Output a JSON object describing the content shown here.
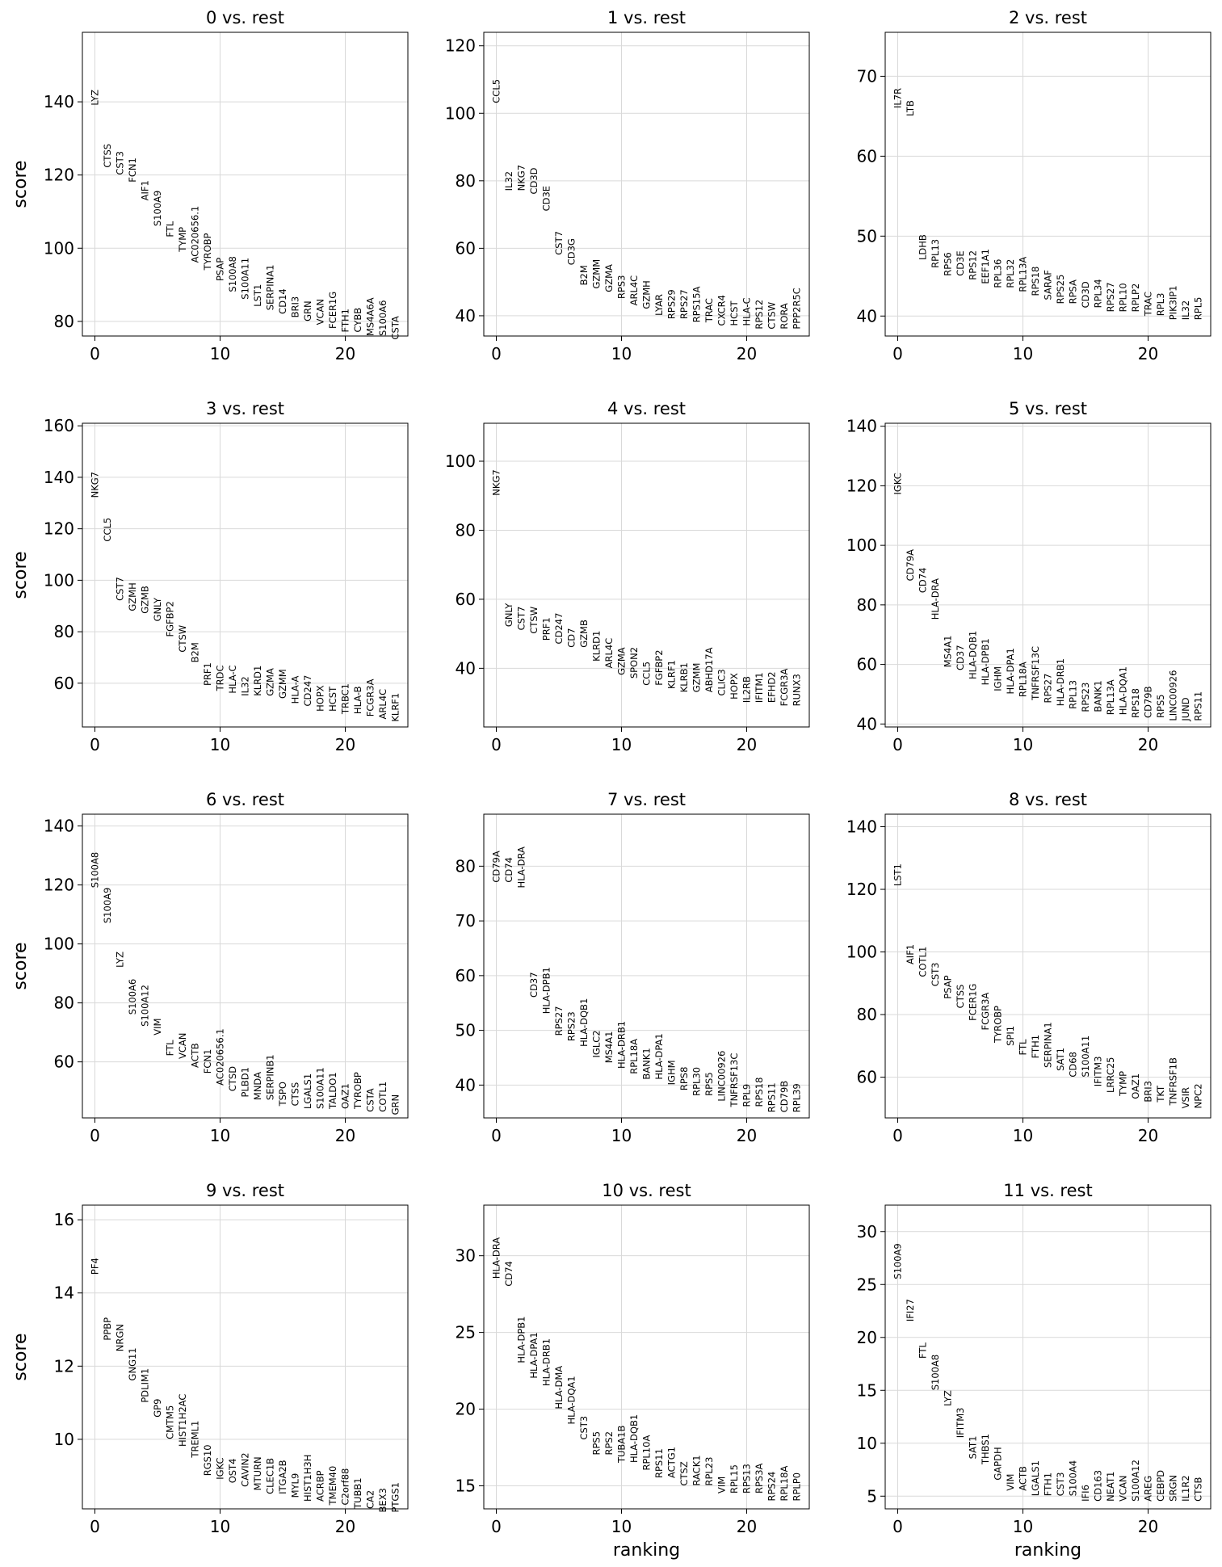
{
  "chart_data": [
    {
      "type": "scatter",
      "title": "0 vs. rest",
      "xlabel": "",
      "ylabel": "score",
      "xlim": [
        -1,
        25
      ],
      "ylim": [
        76,
        159
      ],
      "yticks": [
        80,
        100,
        120,
        140
      ],
      "xticks": [
        0,
        10,
        20
      ],
      "grid": true,
      "genes": [
        "LYZ",
        "CTSS",
        "CST3",
        "FCN1",
        "AIF1",
        "S100A9",
        "FTL",
        "TYMP",
        "AC020656.1",
        "TYROBP",
        "PSAP",
        "S100A8",
        "S100A11",
        "LST1",
        "SERPINA1",
        "CD14",
        "BRI3",
        "GRN",
        "VCAN",
        "FCER1G",
        "FTH1",
        "CYBB",
        "MS4A6A",
        "S100A6",
        "CSTA"
      ],
      "scores": [
        139,
        122,
        120,
        118,
        113,
        106,
        103,
        99,
        96,
        94,
        91,
        88,
        86,
        84,
        83,
        82,
        81,
        80,
        79,
        78,
        77,
        77,
        76,
        76,
        75
      ]
    },
    {
      "type": "scatter",
      "title": "1 vs. rest",
      "xlabel": "",
      "ylabel": "",
      "xlim": [
        -1,
        25
      ],
      "ylim": [
        34,
        124
      ],
      "yticks": [
        40,
        60,
        80,
        100,
        120
      ],
      "xticks": [
        0,
        10,
        20
      ],
      "grid": true,
      "genes": [
        "CCL5",
        "IL32",
        "NKG7",
        "CD3D",
        "CD3E",
        "CST7",
        "CD3G",
        "B2M",
        "GZMM",
        "GZMA",
        "RPS3",
        "ARL4C",
        "GZMH",
        "LYAR",
        "RPS29",
        "RPS27",
        "RPS15A",
        "TRAC",
        "CXCR4",
        "HCST",
        "HLA-C",
        "RPS12",
        "CTSW",
        "RORA",
        "PPP2R5C"
      ],
      "scores": [
        103,
        77,
        77,
        76,
        71,
        58,
        55,
        49,
        48,
        47,
        45,
        43,
        42,
        40,
        39,
        39,
        38,
        38,
        37,
        37,
        37,
        36,
        36,
        36,
        36
      ]
    },
    {
      "type": "scatter",
      "title": "2 vs. rest",
      "xlabel": "",
      "ylabel": "",
      "xlim": [
        -1,
        25
      ],
      "ylim": [
        37.5,
        75.5
      ],
      "yticks": [
        40,
        50,
        60,
        70
      ],
      "xticks": [
        0,
        10,
        20
      ],
      "grid": true,
      "genes": [
        "IL7R",
        "LTB",
        "LDHB",
        "RPL13",
        "RPS6",
        "CD3E",
        "RPS12",
        "EEF1A1",
        "RPL36",
        "RPL32",
        "RPL13A",
        "RPS18",
        "SARAF",
        "RPS25",
        "RPSA",
        "CD3D",
        "RPL34",
        "RPS27",
        "RPL10",
        "RPLP2",
        "TRAC",
        "RPL3",
        "PIK3IP1",
        "IL32",
        "RPL5"
      ],
      "scores": [
        66,
        65,
        47,
        46,
        45,
        45,
        44.5,
        44,
        43.5,
        43.5,
        43,
        42.5,
        42,
        41.5,
        41.5,
        41,
        41,
        40.5,
        40.5,
        40.5,
        40,
        40,
        39.5,
        39.5,
        39.5
      ]
    },
    {
      "type": "scatter",
      "title": "3 vs. rest",
      "xlabel": "",
      "ylabel": "score",
      "xlim": [
        -1,
        25
      ],
      "ylim": [
        43,
        161
      ],
      "yticks": [
        60,
        80,
        100,
        120,
        140,
        160
      ],
      "xticks": [
        0,
        10,
        20
      ],
      "grid": true,
      "genes": [
        "NKG7",
        "CCL5",
        "CST7",
        "GZMH",
        "GZMB",
        "GNLY",
        "FGFBP2",
        "CTSW",
        "B2M",
        "PRF1",
        "TRDC",
        "HLA-C",
        "IL32",
        "KLRD1",
        "GZMA",
        "GZMM",
        "HLA-A",
        "CD247",
        "HOPX",
        "HCST",
        "TRBC1",
        "HLA-B",
        "FCGR3A",
        "ARL4C",
        "KLRF1"
      ],
      "scores": [
        132,
        115,
        92,
        88,
        87,
        84,
        78,
        72,
        68,
        59,
        57,
        56,
        55,
        55,
        55,
        54,
        52,
        51,
        49,
        49,
        48,
        48,
        47,
        46,
        45
      ]
    },
    {
      "type": "scatter",
      "title": "4 vs. rest",
      "xlabel": "",
      "ylabel": "",
      "xlim": [
        -1,
        25
      ],
      "ylim": [
        23,
        111
      ],
      "yticks": [
        40,
        60,
        80,
        100
      ],
      "xticks": [
        0,
        10,
        20
      ],
      "grid": true,
      "genes": [
        "NKG7",
        "GNLY",
        "CST7",
        "CTSW",
        "PRF1",
        "CD247",
        "CD7",
        "GZMB",
        "KLRD1",
        "ARL4C",
        "GZMA",
        "SPON2",
        "CCL5",
        "FGFBP2",
        "KLRF1",
        "KLRB1",
        "GZMM",
        "ABHD17A",
        "CLIC3",
        "HOPX",
        "IL2RB",
        "IFITM1",
        "EFHD2",
        "FCGR3A",
        "RUNX3"
      ],
      "scores": [
        90,
        52,
        51,
        50,
        48,
        47,
        46,
        46,
        42,
        40,
        38,
        37,
        35,
        35,
        34,
        33,
        33,
        33,
        32,
        31,
        30,
        30,
        30,
        29,
        29
      ]
    },
    {
      "type": "scatter",
      "title": "5 vs. rest",
      "xlabel": "",
      "ylabel": "",
      "xlim": [
        -1,
        25
      ],
      "ylim": [
        39,
        141
      ],
      "yticks": [
        40,
        60,
        80,
        100,
        120,
        140
      ],
      "xticks": [
        0,
        10,
        20
      ],
      "grid": true,
      "genes": [
        "IGKC",
        "CD79A",
        "CD74",
        "HLA-DRA",
        "MS4A1",
        "CD37",
        "HLA-DQB1",
        "HLA-DPB1",
        "IGHM",
        "HLA-DPA1",
        "RPL18A",
        "TNFRSF13C",
        "RPS27",
        "HLA-DRB1",
        "RPL13",
        "RPS23",
        "BANK1",
        "RPL13A",
        "HLA-DQA1",
        "RPS18",
        "CD79B",
        "RPS5",
        "LINC00926",
        "JUND",
        "RPS11"
      ],
      "scores": [
        117,
        88,
        84,
        75,
        59,
        58,
        55,
        53,
        51,
        50,
        49,
        48,
        47,
        46,
        45,
        44,
        44,
        43,
        43,
        42,
        42,
        42,
        41,
        41,
        41
      ]
    },
    {
      "type": "scatter",
      "title": "6 vs. rest",
      "xlabel": "",
      "ylabel": "score",
      "xlim": [
        -1,
        25
      ],
      "ylim": [
        41,
        144
      ],
      "yticks": [
        60,
        80,
        100,
        120,
        140
      ],
      "xticks": [
        0,
        10,
        20
      ],
      "grid": true,
      "genes": [
        "S100A8",
        "S100A9",
        "LYZ",
        "S100A6",
        "S100A12",
        "VIM",
        "FTL",
        "VCAN",
        "ACTB",
        "FCN1",
        "AC020656.1",
        "CTSD",
        "PLBD1",
        "MNDA",
        "SERPINB1",
        "TSPO",
        "CTSS",
        "LGALS1",
        "S100A11",
        "TALDO1",
        "OAZ1",
        "TYROBP",
        "CSTA",
        "COTL1",
        "GRN"
      ],
      "scores": [
        119,
        107,
        92,
        76,
        72,
        69,
        62,
        61,
        58,
        56,
        52,
        50,
        48,
        47,
        47,
        45,
        45,
        44,
        44,
        44,
        44,
        44,
        43,
        43,
        42
      ]
    },
    {
      "type": "scatter",
      "title": "7 vs. rest",
      "xlabel": "",
      "ylabel": "",
      "xlim": [
        -1,
        25
      ],
      "ylim": [
        34,
        89.5
      ],
      "yticks": [
        40,
        50,
        60,
        70,
        80
      ],
      "xticks": [
        0,
        10,
        20
      ],
      "grid": true,
      "genes": [
        "CD79A",
        "CD74",
        "HLA-DRA",
        "CD37",
        "HLA-DPB1",
        "RPS27",
        "RPS23",
        "HLA-DQB1",
        "IGLC2",
        "MS4A1",
        "HLA-DRB1",
        "RPL18A",
        "BANK1",
        "HLA-DPA1",
        "IGHM",
        "RPS8",
        "RPL30",
        "RPS5",
        "LINC00926",
        "TNFRSF13C",
        "RPL9",
        "RPS18",
        "RPS11",
        "CD79B",
        "RPL39"
      ],
      "scores": [
        77,
        77,
        76,
        56,
        53,
        49,
        48,
        47,
        45,
        44,
        43,
        42,
        41,
        41,
        40,
        39,
        38,
        38,
        37,
        36,
        36,
        36,
        35,
        35,
        35
      ]
    },
    {
      "type": "scatter",
      "title": "8 vs. rest",
      "xlabel": "",
      "ylabel": "",
      "xlim": [
        -1,
        25
      ],
      "ylim": [
        47,
        144
      ],
      "yticks": [
        60,
        80,
        100,
        120,
        140
      ],
      "xticks": [
        0,
        10,
        20
      ],
      "grid": true,
      "genes": [
        "LST1",
        "AIF1",
        "COTL1",
        "CST3",
        "PSAP",
        "CTSS",
        "FCER1G",
        "FCGR3A",
        "TYROBP",
        "SPI1",
        "FTL",
        "FTH1",
        "SERPINA1",
        "SAT1",
        "CD68",
        "S100A11",
        "IFITM3",
        "LRRC25",
        "TYMP",
        "OAZ1",
        "BRI3",
        "TKT",
        "TNFRSF1B",
        "VSIR",
        "NPC2"
      ],
      "scores": [
        121,
        96,
        92,
        89,
        85,
        82,
        78,
        75,
        71,
        70,
        67,
        66,
        63,
        62,
        60,
        60,
        57,
        55,
        54,
        53,
        52,
        52,
        51,
        50,
        50
      ]
    },
    {
      "type": "scatter",
      "title": "9 vs. rest",
      "xlabel": "",
      "ylabel": "score",
      "xlabel_note": "",
      "xlim": [
        -1,
        25
      ],
      "ylim": [
        8.1,
        16.4
      ],
      "yticks": [
        10,
        12,
        14,
        16
      ],
      "xticks": [
        0,
        10,
        20
      ],
      "grid": true,
      "genes": [
        "PF4",
        "PPBP",
        "NRGN",
        "GNG11",
        "PDLIM1",
        "GP9",
        "CMTM5",
        "HIST1H2AC",
        "TREML1",
        "RGS10",
        "IGKC",
        "OST4",
        "CAVIN2",
        "MTURN",
        "CLEC1B",
        "ITGA2B",
        "MYL9",
        "HIST1H3H",
        "ACRBP",
        "TMEM40",
        "C2orf88",
        "TUBB1",
        "CA2",
        "BEX3",
        "PTGS1"
      ],
      "scores": [
        14.5,
        12.7,
        12.4,
        11.6,
        11.0,
        10.6,
        10.0,
        9.8,
        9.5,
        9.0,
        8.9,
        8.8,
        8.7,
        8.6,
        8.5,
        8.5,
        8.4,
        8.3,
        8.3,
        8.2,
        8.2,
        8.1,
        8.1,
        8.0,
        8.0
      ]
    },
    {
      "type": "scatter",
      "title": "10 vs. rest",
      "xlabel": "ranking",
      "ylabel": "",
      "xlim": [
        -1,
        25
      ],
      "ylim": [
        13.5,
        33.3
      ],
      "yticks": [
        15,
        20,
        25,
        30
      ],
      "xticks": [
        0,
        10,
        20
      ],
      "grid": true,
      "genes": [
        "HLA-DRA",
        "CD74",
        "HLA-DPB1",
        "HLA-DPA1",
        "HLA-DRB1",
        "HLA-DMA",
        "HLA-DQA1",
        "CST3",
        "RPS5",
        "RPS2",
        "TUBA1B",
        "HLA-DQB1",
        "RPL10A",
        "RPS11",
        "ACTG1",
        "CTSZ",
        "RACK1",
        "RPL23",
        "VIM",
        "RPL15",
        "RPS13",
        "RPS3A",
        "RPS24",
        "RPL18A",
        "RPLP0"
      ],
      "scores": [
        28.5,
        28,
        23,
        22,
        21.5,
        20,
        19,
        18,
        17,
        17,
        16.5,
        16.5,
        16,
        15.5,
        15.5,
        15,
        15,
        15,
        14.5,
        14.5,
        14.5,
        14.5,
        14,
        14,
        14
      ]
    },
    {
      "type": "scatter",
      "title": "11 vs. rest",
      "xlabel": "ranking",
      "ylabel": "",
      "xlim": [
        -1,
        25
      ],
      "ylim": [
        3.8,
        32.5
      ],
      "yticks": [
        5,
        10,
        15,
        20,
        25,
        30
      ],
      "xticks": [
        0,
        10,
        20
      ],
      "grid": true,
      "genes": [
        "S100A9",
        "IFI27",
        "FTL",
        "S100A8",
        "LYZ",
        "IFITM3",
        "SAT1",
        "THBS1",
        "GAPDH",
        "VIM",
        "ACTB",
        "LGALS1",
        "FTH1",
        "CST3",
        "S100A4",
        "IFI6",
        "CD163",
        "NEAT1",
        "VCAN",
        "S100A12",
        "AREG",
        "CEBPD",
        "SRGN",
        "IL1R2",
        "CTSB"
      ],
      "scores": [
        25.5,
        21.5,
        18,
        15,
        13.5,
        10.5,
        8.5,
        8,
        6.5,
        5.5,
        5.5,
        5,
        5,
        5,
        5,
        4.5,
        4.5,
        4.5,
        4.5,
        4.5,
        4.5,
        4.5,
        4.5,
        4.5,
        4.5
      ]
    }
  ]
}
